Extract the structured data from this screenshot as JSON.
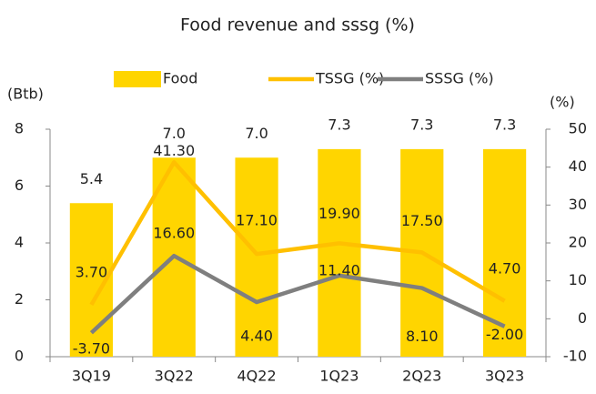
{
  "chart_data": {
    "type": "bar",
    "title": "Food revenue and sssg (%)",
    "y_label": "(Btb)",
    "y2_label": "(%)",
    "categories": [
      "3Q19",
      "3Q22",
      "4Q22",
      "1Q23",
      "2Q23",
      "3Q23"
    ],
    "series": [
      {
        "name": "Food",
        "type": "bar",
        "color": "#FFD500",
        "values": [
          5.4,
          7.0,
          7.0,
          7.3,
          7.3,
          7.3
        ],
        "value_labels": [
          "5.4",
          "7.0",
          "7.0",
          "7.3",
          "7.3",
          "7.3"
        ]
      },
      {
        "name": "TSSG (%)",
        "type": "line",
        "axis": "y2",
        "color": "#FFC000",
        "values": [
          3.7,
          41.3,
          17.1,
          19.9,
          17.5,
          4.7
        ],
        "value_labels": [
          "3.70",
          "41.30",
          "17.10",
          "19.90",
          "17.50",
          "4.70"
        ]
      },
      {
        "name": "SSSG (%)",
        "type": "line",
        "axis": "y2",
        "color": "#7F7F7F",
        "values": [
          -3.7,
          16.6,
          4.4,
          11.4,
          8.1,
          -2.0
        ],
        "value_labels": [
          "-3.70",
          "16.60",
          "4.40",
          "11.40",
          "8.10",
          "-2.00"
        ]
      }
    ],
    "ylim": [
      0,
      8
    ],
    "yticks": [
      0,
      2,
      4,
      6,
      8
    ],
    "y2lim": [
      -10,
      50
    ],
    "y2ticks": [
      -10,
      0,
      10,
      20,
      30,
      40,
      50
    ],
    "legend": "top"
  }
}
